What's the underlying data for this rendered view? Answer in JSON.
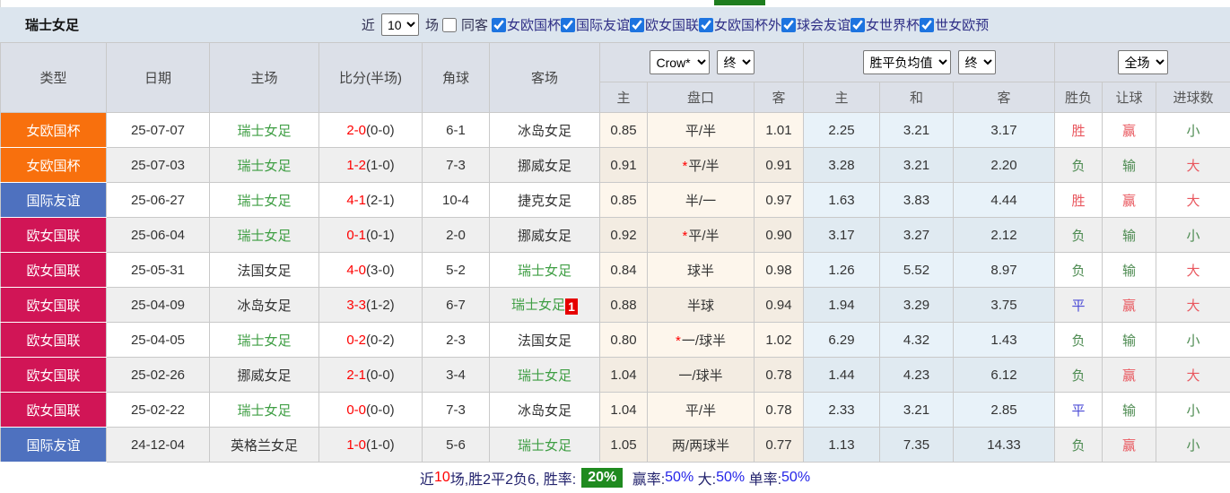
{
  "title_bar": {
    "title": "瑞士女足",
    "recent_label": "近",
    "recent_value": "10",
    "matches_label": "场",
    "same_venue_label": "同客",
    "filters": [
      "女欧国杯",
      "国际友谊",
      "欧女国联",
      "女欧国杯外",
      "球会友谊",
      "女世界杯",
      "世女欧预"
    ]
  },
  "table_header": {
    "type": "类型",
    "date": "日期",
    "home": "主场",
    "score": "比分(半场)",
    "corner": "角球",
    "away": "客场",
    "odds_company": "Crow*",
    "odds_time1": "终",
    "avg_label": "胜平负均值",
    "odds_time2": "终",
    "scope": "全场",
    "sub": [
      "主",
      "盘口",
      "客",
      "主",
      "和",
      "客",
      "胜负",
      "让球",
      "进球数"
    ]
  },
  "matches": [
    {
      "type": "女欧国杯",
      "date": "25-07-07",
      "home": "瑞士女足",
      "score": "2-0",
      "half": "(0-0)",
      "corner": "6-1",
      "away": "冰岛女足",
      "away_badge": "",
      "ah_home": "0.85",
      "star": false,
      "handicap": "平/半",
      "ah_away": "1.01",
      "win": "2.25",
      "draw": "3.21",
      "lose": "3.17",
      "result": "胜",
      "ah_result": "赢",
      "goals": "小"
    },
    {
      "type": "女欧国杯",
      "date": "25-07-03",
      "home": "瑞士女足",
      "score": "1-2",
      "half": "(1-0)",
      "corner": "7-3",
      "away": "挪威女足",
      "away_badge": "",
      "ah_home": "0.91",
      "star": true,
      "handicap": "平/半",
      "ah_away": "0.91",
      "win": "3.28",
      "draw": "3.21",
      "lose": "2.20",
      "result": "负",
      "ah_result": "输",
      "goals": "大"
    },
    {
      "type": "国际友谊",
      "date": "25-06-27",
      "home": "瑞士女足",
      "score": "4-1",
      "half": "(2-1)",
      "corner": "10-4",
      "away": "捷克女足",
      "away_badge": "",
      "ah_home": "0.85",
      "star": false,
      "handicap": "半/一",
      "ah_away": "0.97",
      "win": "1.63",
      "draw": "3.83",
      "lose": "4.44",
      "result": "胜",
      "ah_result": "赢",
      "goals": "大"
    },
    {
      "type": "欧女国联",
      "date": "25-06-04",
      "home": "瑞士女足",
      "score": "0-1",
      "half": "(0-1)",
      "corner": "2-0",
      "away": "挪威女足",
      "away_badge": "",
      "ah_home": "0.92",
      "star": true,
      "handicap": "平/半",
      "ah_away": "0.90",
      "win": "3.17",
      "draw": "3.27",
      "lose": "2.12",
      "result": "负",
      "ah_result": "输",
      "goals": "小"
    },
    {
      "type": "欧女国联",
      "date": "25-05-31",
      "home": "法国女足",
      "score": "4-0",
      "half": "(3-0)",
      "corner": "5-2",
      "away": "瑞士女足",
      "away_badge": "",
      "ah_home": "0.84",
      "star": false,
      "handicap": "球半",
      "ah_away": "0.98",
      "win": "1.26",
      "draw": "5.52",
      "lose": "8.97",
      "result": "负",
      "ah_result": "输",
      "goals": "大"
    },
    {
      "type": "欧女国联",
      "date": "25-04-09",
      "home": "冰岛女足",
      "score": "3-3",
      "half": "(1-2)",
      "corner": "6-7",
      "away": "瑞士女足",
      "away_badge": "1",
      "ah_home": "0.88",
      "star": false,
      "handicap": "半球",
      "ah_away": "0.94",
      "win": "1.94",
      "draw": "3.29",
      "lose": "3.75",
      "result": "平",
      "ah_result": "赢",
      "goals": "大"
    },
    {
      "type": "欧女国联",
      "date": "25-04-05",
      "home": "瑞士女足",
      "score": "0-2",
      "half": "(0-2)",
      "corner": "2-3",
      "away": "法国女足",
      "away_badge": "",
      "ah_home": "0.80",
      "star": true,
      "handicap": "一/球半",
      "ah_away": "1.02",
      "win": "6.29",
      "draw": "4.32",
      "lose": "1.43",
      "result": "负",
      "ah_result": "输",
      "goals": "小"
    },
    {
      "type": "欧女国联",
      "date": "25-02-26",
      "home": "挪威女足",
      "score": "2-1",
      "half": "(0-0)",
      "corner": "3-4",
      "away": "瑞士女足",
      "away_badge": "",
      "ah_home": "1.04",
      "star": false,
      "handicap": "一/球半",
      "ah_away": "0.78",
      "win": "1.44",
      "draw": "4.23",
      "lose": "6.12",
      "result": "负",
      "ah_result": "赢",
      "goals": "大"
    },
    {
      "type": "欧女国联",
      "date": "25-02-22",
      "home": "瑞士女足",
      "score": "0-0",
      "half": "(0-0)",
      "corner": "7-3",
      "away": "冰岛女足",
      "away_badge": "",
      "ah_home": "1.04",
      "star": false,
      "handicap": "平/半",
      "ah_away": "0.78",
      "win": "2.33",
      "draw": "3.21",
      "lose": "2.85",
      "result": "平",
      "ah_result": "输",
      "goals": "小"
    },
    {
      "type": "国际友谊",
      "date": "24-12-04",
      "home": "英格兰女足",
      "score": "1-0",
      "half": "(1-0)",
      "corner": "5-6",
      "away": "瑞士女足",
      "away_badge": "",
      "ah_home": "1.05",
      "star": false,
      "handicap": "两/两球半",
      "ah_away": "0.77",
      "win": "1.13",
      "draw": "7.35",
      "lose": "14.33",
      "result": "负",
      "ah_result": "赢",
      "goals": "小"
    }
  ],
  "footer": {
    "prefix": "近",
    "count": "10",
    "summary": "场,胜2平2负6, 胜率:",
    "win_rate": "20%",
    "win_odds_label": " 赢率:",
    "win_odds_value": "50%",
    "big_label": " 大:",
    "big_value": "50%",
    "single_label": " 单率:",
    "single_value": "50%"
  },
  "colors": {
    "type": {
      "女欧国杯": "#f8700d",
      "国际友谊": "#4e71bf",
      "欧女国联": "#d11556"
    },
    "result": {
      "胜": "#e9575e",
      "负": "#4d8b51",
      "平": "#4b4bd6",
      "赢": "#e9575e",
      "输": "#4d8b51",
      "大": "#e9575e",
      "小": "#4d8b51"
    },
    "self_team_green": "#3f9e44",
    "score_red": "#ff0000",
    "checkbox_blue": "#1d74e0",
    "win_rate_badge_green": "#1f8a1f"
  }
}
